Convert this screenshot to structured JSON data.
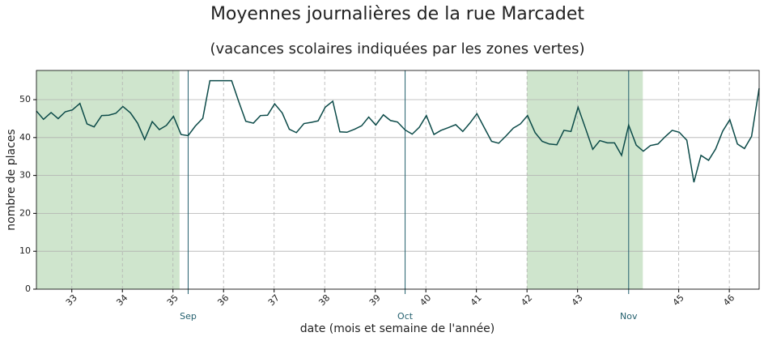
{
  "chart_data": {
    "type": "line",
    "title": "Moyennes journalières de la rue Marcadet",
    "subtitle": "(vacances scolaires indiquées par les zones vertes)",
    "x_label": "date (mois et semaine de l'année)",
    "y_label": "nombre de places",
    "x": [
      32.3,
      32.44,
      32.59,
      32.73,
      32.87,
      33.01,
      33.16,
      33.3,
      33.44,
      33.59,
      33.73,
      33.87,
      34.01,
      34.16,
      34.3,
      34.44,
      34.59,
      34.73,
      34.87,
      35.01,
      35.16,
      35.3,
      35.44,
      35.59,
      35.73,
      35.87,
      36.01,
      36.16,
      36.3,
      36.44,
      36.59,
      36.73,
      36.87,
      37.01,
      37.16,
      37.3,
      37.44,
      37.59,
      37.73,
      37.87,
      38.01,
      38.16,
      38.3,
      38.44,
      38.59,
      38.73,
      38.87,
      39.01,
      39.16,
      39.3,
      39.44,
      39.59,
      39.73,
      39.87,
      40.01,
      40.16,
      40.3,
      40.44,
      40.59,
      40.73,
      40.87,
      41.01,
      41.16,
      41.3,
      41.44,
      41.59,
      41.73,
      41.87,
      42.01,
      42.16,
      42.3,
      42.44,
      42.59,
      42.73,
      42.87,
      43.01,
      43.16,
      43.3,
      43.44,
      43.59,
      43.73,
      43.87,
      44.01,
      44.16,
      44.3,
      44.44,
      44.59,
      44.73,
      44.87,
      45.01,
      45.16,
      45.3,
      45.44,
      45.59,
      45.73,
      45.87,
      46.01,
      46.16,
      46.3,
      46.44,
      46.59
    ],
    "series": [
      {
        "name": "Marcadet",
        "color": "#0b4a48",
        "values": [
          47,
          44.8,
          46.6,
          45,
          46.8,
          47.3,
          49,
          43.6,
          42.8,
          45.8,
          45.9,
          46.4,
          48.2,
          46.5,
          43.8,
          39.5,
          44.2,
          42.1,
          43.2,
          45.6,
          40.8,
          40.5,
          43,
          45.1,
          55,
          55,
          55,
          55,
          49.5,
          44.3,
          43.8,
          45.8,
          45.9,
          48.9,
          46.5,
          42.2,
          41.3,
          43.7,
          44,
          44.4,
          48,
          49.6,
          41.5,
          41.4,
          42.2,
          43.1,
          45.4,
          43.3,
          46,
          44.5,
          44.1,
          42,
          40.9,
          42.7,
          45.8,
          40.8,
          41.9,
          42.6,
          43.4,
          41.6,
          43.8,
          46.3,
          42.5,
          39,
          38.5,
          40.5,
          42.5,
          43.6,
          45.8,
          41.3,
          39,
          38.3,
          38.1,
          41.9,
          41.6,
          48,
          42.3,
          36.9,
          39.2,
          38.6,
          38.6,
          35.3,
          43.3,
          38,
          36.4,
          37.9,
          38.3,
          40.2,
          41.9,
          41.4,
          39.3,
          28.2,
          35.3,
          34,
          37,
          41.7,
          44.7,
          38.3,
          37.1,
          40.3,
          53
        ]
      }
    ],
    "xlim": [
      32.3,
      46.59
    ],
    "xticks": [
      33,
      34,
      35,
      36,
      37,
      38,
      39,
      40,
      41,
      42,
      43,
      45,
      46
    ],
    "ylim": [
      0,
      57.7
    ],
    "yticks": [
      0,
      10,
      20,
      30,
      40,
      50
    ],
    "month_markers": [
      {
        "value": 35.3,
        "label": "Sep"
      },
      {
        "value": 39.59,
        "label": "Oct"
      },
      {
        "value": 44.01,
        "label": "Nov"
      }
    ],
    "month_color": "#24606e",
    "shaded_ranges": [
      [
        32.3,
        35.13
      ],
      [
        42,
        44.29
      ]
    ],
    "shade_color": "#cfe5cd",
    "grid": true
  }
}
